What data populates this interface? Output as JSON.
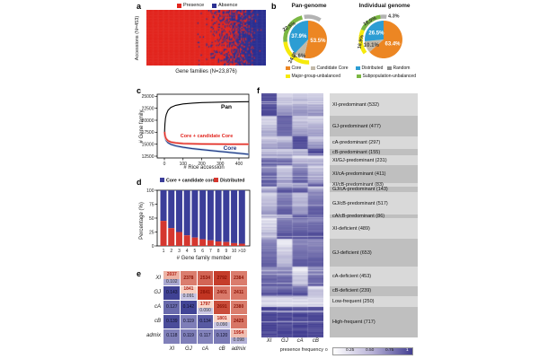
{
  "panels": {
    "a": {
      "label": "a",
      "legend": [
        {
          "label": "Presence",
          "color": "#e2261f"
        },
        {
          "label": "Absence",
          "color": "#2b3092"
        }
      ],
      "y_label": "Accessions (N=453)",
      "x_label": "Gene families (N=23,876)"
    },
    "b": {
      "label": "b",
      "pan_title": "Pan-genome",
      "individual_title": "Individual genome",
      "legend": [
        {
          "label": "Core",
          "color": "#ec8623"
        },
        {
          "label": "Candidate Core",
          "color": "#c2b9a9"
        },
        {
          "label": "Distributed",
          "color": "#2c9dd3"
        },
        {
          "label": "Random",
          "color": "#8f8f8f"
        },
        {
          "label": "Major-group-unbalanced",
          "color": "#f6ea0c"
        },
        {
          "label": "Subpopulation-unbalanced",
          "color": "#7bb743"
        }
      ]
    },
    "c": {
      "label": "c",
      "y_label": "# Gene family",
      "x_label": "# Rice accession"
    },
    "d": {
      "label": "d",
      "y_label": "Percentage (%)",
      "x_label": "# Gene family member"
    },
    "e": {
      "label": "e"
    },
    "f": {
      "label": "f",
      "legend_title": "presence frequency"
    }
  },
  "chart_data": [
    {
      "id": "pav_heatmap",
      "type": "heatmap",
      "panel": "a",
      "x_label": "Gene families (N=23,876)",
      "y_label": "Accessions (N=453)",
      "colors": {
        "presence": "#e2261f",
        "absence": "#2b3092"
      },
      "description": "Presence/absence matrix: ~54% of gene families present (red) in all 453 accessions, presence decreasing toward the right into absence (blue)",
      "core_red_fraction": 0.54
    },
    {
      "id": "pan_genome_pie",
      "type": "pie",
      "title": "Pan-genome",
      "slices": [
        {
          "label": "Core",
          "value": 53.5,
          "display": "53.5%",
          "color": "#ec8623",
          "text_color": "#ffffff"
        },
        {
          "label": "Candidate Core",
          "value": 8.6,
          "display": "8.6%",
          "color": "#c2b9a9",
          "text_color": "#444444"
        },
        {
          "label": "Distributed",
          "value": 37.9,
          "display": "37.9%",
          "color": "#2c9dd3",
          "text_color": "#ffffff"
        }
      ],
      "outer_arcs": [
        {
          "label": "Random",
          "value": null,
          "display": "",
          "color": "#b3b3b3"
        },
        {
          "label": "Subpopulation-unbalanced",
          "value": 22.5,
          "display": "22.5%",
          "color": "#7bb743"
        },
        {
          "label": "Major-group-unbalanced",
          "value": 24.0,
          "display": "24.0%",
          "color": "#f6ea0c"
        }
      ]
    },
    {
      "id": "individual_genome_pie",
      "type": "pie",
      "title": "Individual genome",
      "slices": [
        {
          "label": "Core",
          "value": 63.4,
          "display": "63.4%",
          "color": "#ec8623",
          "text_color": "#ffffff"
        },
        {
          "label": "Candidate Core",
          "value": 10.1,
          "display": "10.1%",
          "color": "#c2b9a9",
          "text_color": "#444444"
        },
        {
          "label": "Distributed",
          "value": 26.5,
          "display": "26.5%",
          "color": "#2c9dd3",
          "text_color": "#ffffff"
        }
      ],
      "outer_arcs": [
        {
          "label": "Random",
          "value": 4.3,
          "display": "4.3%",
          "color": "#b3b3b3"
        },
        {
          "label": "Subpopulation-unbalanced",
          "value": 16.0,
          "display": "16.0%",
          "color": "#7bb743"
        },
        {
          "label": "Major-group-unbalanced",
          "value": 16.9,
          "display": "16.9%",
          "color": "#f6ea0c"
        }
      ]
    },
    {
      "id": "gene_family_accumulation",
      "type": "line",
      "x_label": "# Rice accession",
      "y_label": "# Gene family",
      "x_ticks": [
        0,
        100,
        200,
        300,
        400
      ],
      "y_ticks": [
        12500,
        15000,
        17500,
        20000,
        22500,
        25000
      ],
      "xlim": [
        0,
        453
      ],
      "ylim": [
        12500,
        25000
      ],
      "series": [
        {
          "name": "Pan",
          "color": "#000000",
          "band_color": null,
          "x": [
            1,
            3,
            6,
            10,
            20,
            35,
            60,
            100,
            150,
            200,
            300,
            400,
            453
          ],
          "y": [
            17600,
            19200,
            20400,
            21200,
            22100,
            22700,
            23100,
            23400,
            23580,
            23680,
            23790,
            23850,
            23876
          ]
        },
        {
          "name": "Core + candidate Core",
          "color": "#e2261f",
          "band_color": "#f3aca6",
          "x": [
            1,
            3,
            6,
            10,
            20,
            35,
            60,
            100,
            150,
            200,
            300,
            400,
            453
          ],
          "y": [
            17600,
            16900,
            16450,
            16100,
            15700,
            15450,
            15280,
            15150,
            15080,
            15040,
            15010,
            15000,
            14995
          ]
        },
        {
          "name": "Core",
          "color": "#20337f",
          "band_color": "#b9d2ea",
          "x": [
            1,
            3,
            6,
            10,
            20,
            35,
            60,
            100,
            150,
            200,
            300,
            400,
            453
          ],
          "y": [
            17600,
            16700,
            16150,
            15750,
            15300,
            14950,
            14650,
            14350,
            14080,
            13870,
            13480,
            13100,
            12900
          ]
        }
      ]
    },
    {
      "id": "family_member_composition",
      "type": "bar",
      "stacked": true,
      "categories": [
        "1",
        "2",
        "3",
        "4",
        "5",
        "6",
        "7",
        "8",
        "9",
        "10",
        ">10"
      ],
      "series": [
        {
          "name": "Core + candidate core",
          "color": "#3b3e99",
          "values": [
            55,
            68,
            75,
            81,
            85,
            88,
            90,
            92,
            93,
            95,
            96
          ]
        },
        {
          "name": "Distributed",
          "color": "#d5372f",
          "values": [
            45,
            32,
            25,
            19,
            15,
            12,
            10,
            8,
            7,
            5,
            4
          ]
        }
      ],
      "y_ticks": [
        0,
        25,
        50,
        75,
        100
      ],
      "y_label": "Percentage (%)",
      "x_label": "# Gene family member"
    },
    {
      "id": "group_pair_matrix",
      "type": "heatmap",
      "rows": [
        "XI",
        "GJ",
        "cA",
        "cB",
        "admix"
      ],
      "cols": [
        "XI",
        "GJ",
        "cA",
        "cB",
        "admix"
      ],
      "upper_triangle_metric": "count",
      "lower_triangle_metric": "frequency",
      "cells": [
        [
          {
            "type": "diag",
            "count": 2037,
            "freq": 0.102
          },
          {
            "type": "count",
            "v": 2378
          },
          {
            "type": "count",
            "v": 2534
          },
          {
            "type": "count",
            "v": 2792
          },
          {
            "type": "count",
            "v": 2384
          }
        ],
        [
          {
            "type": "freq",
            "v": 0.143
          },
          {
            "type": "diag",
            "count": 1841,
            "freq": 0.091
          },
          {
            "type": "count",
            "v": 2841
          },
          {
            "type": "count",
            "v": 2401
          },
          {
            "type": "count",
            "v": 2411
          }
        ],
        [
          {
            "type": "freq",
            "v": 0.127
          },
          {
            "type": "freq",
            "v": 0.142
          },
          {
            "type": "diag",
            "count": 1797,
            "freq": 0.09
          },
          {
            "type": "count",
            "v": 2691
          },
          {
            "type": "count",
            "v": 2380
          }
        ],
        [
          {
            "type": "freq",
            "v": 0.139
          },
          {
            "type": "freq",
            "v": 0.119
          },
          {
            "type": "freq",
            "v": 0.134
          },
          {
            "type": "diag",
            "count": 1801,
            "freq": 0.09
          },
          {
            "type": "count",
            "v": 2425
          }
        ],
        [
          {
            "type": "freq",
            "v": 0.118
          },
          {
            "type": "freq",
            "v": 0.119
          },
          {
            "type": "freq",
            "v": 0.117
          },
          {
            "type": "freq",
            "v": 0.12
          },
          {
            "type": "diag",
            "count": 1954,
            "freq": 0.098
          }
        ]
      ]
    },
    {
      "id": "presence_frequency_heatmap",
      "type": "heatmap",
      "columns": [
        "XI",
        "GJ",
        "cA",
        "cB"
      ],
      "legend_title": "presence frequency",
      "legend_ticks": [
        "0",
        "0.25",
        "0.50",
        "0.75",
        "1"
      ],
      "groups": [
        {
          "label": "XI-predominant (532)",
          "count": 532,
          "pattern": [
            0.92,
            0.38,
            0.42,
            0.4
          ]
        },
        {
          "label": "GJ-predominant (477)",
          "count": 477,
          "pattern": [
            0.35,
            0.92,
            0.45,
            0.42
          ]
        },
        {
          "label": "cA-predominant (297)",
          "count": 297,
          "pattern": [
            0.38,
            0.42,
            0.92,
            0.45
          ]
        },
        {
          "label": "cB-predominant (155)",
          "count": 155,
          "pattern": [
            0.4,
            0.42,
            0.45,
            0.92
          ]
        },
        {
          "label": "XI/GJ-predominant (231)",
          "count": 231,
          "pattern": [
            0.88,
            0.88,
            0.45,
            0.45
          ]
        },
        {
          "label": "XI/cA-predominant (411)",
          "count": 411,
          "pattern": [
            0.88,
            0.45,
            0.88,
            0.5
          ]
        },
        {
          "label": "XI/cB-predominant (83)",
          "count": 83,
          "pattern": [
            0.88,
            0.45,
            0.5,
            0.88
          ]
        },
        {
          "label": "GJ/cA-predominant (143)",
          "count": 143,
          "pattern": [
            0.45,
            0.88,
            0.88,
            0.5
          ]
        },
        {
          "label": "GJ/cB-predominant (517)",
          "count": 517,
          "pattern": [
            0.45,
            0.88,
            0.5,
            0.88
          ]
        },
        {
          "label": "cA/cB-predominant (86)",
          "count": 86,
          "pattern": [
            0.45,
            0.5,
            0.88,
            0.88
          ]
        },
        {
          "label": "XI-deficient (489)",
          "count": 489,
          "pattern": [
            0.3,
            0.85,
            0.85,
            0.85
          ]
        },
        {
          "label": "GJ-deficient (653)",
          "count": 653,
          "pattern": [
            0.85,
            0.3,
            0.85,
            0.85
          ]
        },
        {
          "label": "cA-deficient (453)",
          "count": 453,
          "pattern": [
            0.85,
            0.85,
            0.3,
            0.85
          ]
        },
        {
          "label": "cB-deficient (239)",
          "count": 239,
          "pattern": [
            0.85,
            0.85,
            0.85,
            0.3
          ]
        },
        {
          "label": "Low-frequent (250)",
          "count": 250,
          "pattern": [
            0.22,
            0.22,
            0.22,
            0.22
          ]
        },
        {
          "label": "High-frequent (717)",
          "count": 717,
          "pattern": [
            0.93,
            0.93,
            0.93,
            0.93
          ]
        }
      ]
    }
  ]
}
